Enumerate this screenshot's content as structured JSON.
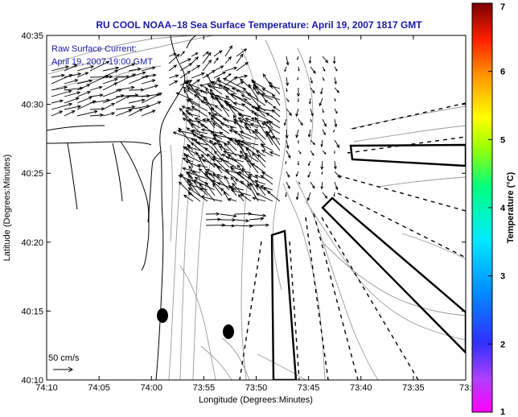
{
  "title": "RU COOL  NOAA–18  Sea Surface Temperature:  April 19, 2007 1817 GMT",
  "legend": {
    "line1": "Raw Surface Current:",
    "line2": "April 19, 2007 19:00 GMT"
  },
  "scale_label": "50 cm/s",
  "x_axis": {
    "label": "Longitude (Degrees:Minutes)",
    "ticks": [
      "74:10",
      "74:05",
      "74:00",
      "73:55",
      "73:50",
      "73:45",
      "73:40",
      "73:35",
      "73:3"
    ]
  },
  "y_axis": {
    "label": "Latitude (Degrees:Minutes)",
    "ticks": [
      "40:35",
      "40:30",
      "40:25",
      "40:20",
      "40:15",
      "40:10"
    ]
  },
  "colorbar": {
    "label": "Temperature (°C)",
    "ticks": [
      "7",
      "6",
      "5",
      "4",
      "3",
      "2",
      "1"
    ]
  },
  "colors": {
    "title": "#1a1aa6",
    "axes": "#000000",
    "contour": "#9a9a9a"
  },
  "chart_data": {
    "type": "map",
    "title": "RU COOL  NOAA–18  Sea Surface Temperature:  April 19, 2007 1817 GMT",
    "xlabel": "Longitude (Degrees:Minutes)",
    "ylabel": "Latitude (Degrees:Minutes)",
    "colorbar_range": [
      1,
      7
    ]
  }
}
